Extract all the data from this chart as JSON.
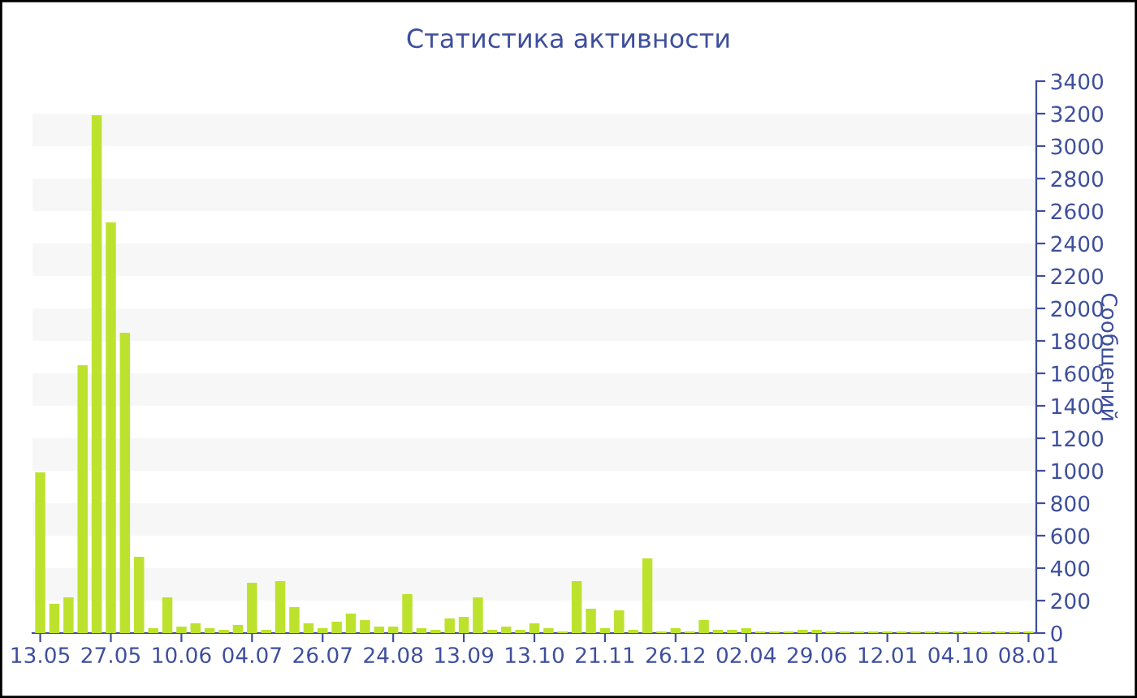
{
  "chart_data": {
    "type": "bar",
    "title": "Статистика активности",
    "ylabel": "Сообщений",
    "categories": [
      "13.05",
      null,
      null,
      null,
      null,
      "27.05",
      null,
      null,
      null,
      null,
      "10.06",
      null,
      null,
      null,
      null,
      "04.07",
      null,
      null,
      null,
      null,
      "26.07",
      null,
      null,
      null,
      null,
      "24.08",
      null,
      null,
      null,
      null,
      "13.09",
      null,
      null,
      null,
      null,
      "13.10",
      null,
      null,
      null,
      null,
      "21.11",
      null,
      null,
      null,
      null,
      "26.12",
      null,
      null,
      null,
      null,
      "02.04",
      null,
      null,
      null,
      null,
      "29.06",
      null,
      null,
      null,
      null,
      "12.01",
      null,
      null,
      null,
      null,
      "04.10",
      null,
      null,
      null,
      null,
      "08.01"
    ],
    "values": [
      990,
      180,
      220,
      1650,
      3190,
      2530,
      1850,
      470,
      30,
      220,
      40,
      60,
      30,
      20,
      50,
      310,
      20,
      320,
      160,
      60,
      30,
      70,
      120,
      80,
      40,
      40,
      240,
      30,
      20,
      90,
      100,
      220,
      20,
      40,
      20,
      60,
      30,
      10,
      320,
      150,
      30,
      140,
      20,
      460,
      10,
      30,
      10,
      80,
      20,
      20,
      30,
      10,
      10,
      10,
      20,
      20,
      10,
      10,
      10,
      10,
      10,
      10,
      10,
      10,
      10,
      10,
      10,
      10,
      10,
      10,
      10
    ],
    "color": "#bde22e",
    "ylim": [
      0,
      3400
    ],
    "yticks": [
      0,
      200,
      400,
      600,
      800,
      1000,
      1200,
      1400,
      1600,
      1800,
      2000,
      2200,
      2400,
      2600,
      2800,
      3000,
      3200,
      3400
    ],
    "bands": [
      {
        "axis": "y",
        "from": 200,
        "to": 400,
        "color": "#f7f7f7"
      },
      {
        "axis": "y",
        "from": 600,
        "to": 800,
        "color": "#f7f7f7"
      },
      {
        "axis": "y",
        "from": 1000,
        "to": 1200,
        "color": "#f7f7f7"
      },
      {
        "axis": "y",
        "from": 1400,
        "to": 1600,
        "color": "#f7f7f7"
      },
      {
        "axis": "y",
        "from": 1800,
        "to": 2000,
        "color": "#f7f7f7"
      },
      {
        "axis": "y",
        "from": 2200,
        "to": 2400,
        "color": "#f7f7f7"
      },
      {
        "axis": "y",
        "from": 2600,
        "to": 2800,
        "color": "#f7f7f7"
      },
      {
        "axis": "y",
        "from": 3000,
        "to": 3200,
        "color": "#f7f7f7"
      }
    ],
    "grid": false,
    "legend": false
  }
}
